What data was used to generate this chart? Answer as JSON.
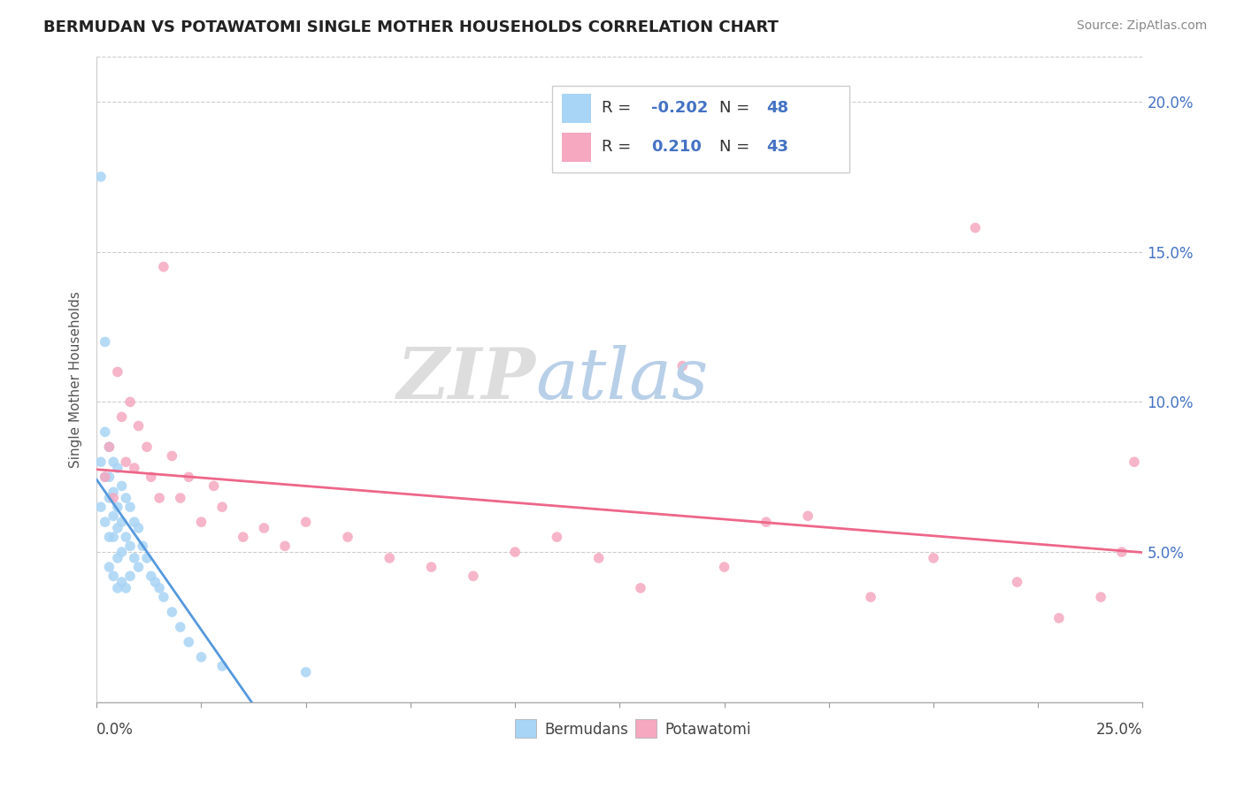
{
  "title": "BERMUDAN VS POTAWATOMI SINGLE MOTHER HOUSEHOLDS CORRELATION CHART",
  "source": "Source: ZipAtlas.com",
  "ylabel": "Single Mother Households",
  "yticklabels": [
    "5.0%",
    "10.0%",
    "15.0%",
    "20.0%"
  ],
  "ytick_values": [
    0.05,
    0.1,
    0.15,
    0.2
  ],
  "xlim": [
    0.0,
    0.25
  ],
  "ylim": [
    0.0,
    0.215
  ],
  "bermudan_color": "#a8d4f5",
  "potawatomi_color": "#f5a8c0",
  "bermudan_line_color": "#5599dd",
  "potawatomi_line_color": "#ee6688",
  "dashed_line_color": "#aaccee",
  "legend_R_bermudan": "-0.202",
  "legend_N_bermudan": "48",
  "legend_R_potawatomi": "0.210",
  "legend_N_potawatomi": "43",
  "background_color": "#ffffff",
  "bermudan_x": [
    0.001,
    0.001,
    0.001,
    0.002,
    0.002,
    0.002,
    0.002,
    0.003,
    0.003,
    0.003,
    0.003,
    0.003,
    0.004,
    0.004,
    0.004,
    0.004,
    0.004,
    0.005,
    0.005,
    0.005,
    0.005,
    0.005,
    0.006,
    0.006,
    0.006,
    0.006,
    0.007,
    0.007,
    0.007,
    0.008,
    0.008,
    0.008,
    0.009,
    0.009,
    0.01,
    0.01,
    0.011,
    0.012,
    0.013,
    0.014,
    0.015,
    0.016,
    0.018,
    0.02,
    0.022,
    0.025,
    0.03,
    0.05
  ],
  "bermudan_y": [
    0.175,
    0.08,
    0.065,
    0.12,
    0.09,
    0.075,
    0.06,
    0.085,
    0.075,
    0.068,
    0.055,
    0.045,
    0.08,
    0.07,
    0.062,
    0.055,
    0.042,
    0.078,
    0.065,
    0.058,
    0.048,
    0.038,
    0.072,
    0.06,
    0.05,
    0.04,
    0.068,
    0.055,
    0.038,
    0.065,
    0.052,
    0.042,
    0.06,
    0.048,
    0.058,
    0.045,
    0.052,
    0.048,
    0.042,
    0.04,
    0.038,
    0.035,
    0.03,
    0.025,
    0.02,
    0.015,
    0.012,
    0.01
  ],
  "potawatomi_x": [
    0.002,
    0.003,
    0.004,
    0.005,
    0.006,
    0.007,
    0.008,
    0.009,
    0.01,
    0.012,
    0.013,
    0.015,
    0.016,
    0.018,
    0.02,
    0.022,
    0.025,
    0.028,
    0.03,
    0.035,
    0.04,
    0.045,
    0.05,
    0.06,
    0.07,
    0.08,
    0.09,
    0.1,
    0.11,
    0.12,
    0.13,
    0.14,
    0.15,
    0.16,
    0.17,
    0.185,
    0.2,
    0.21,
    0.22,
    0.23,
    0.24,
    0.245,
    0.248
  ],
  "potawatomi_y": [
    0.075,
    0.085,
    0.068,
    0.11,
    0.095,
    0.08,
    0.1,
    0.078,
    0.092,
    0.085,
    0.075,
    0.068,
    0.145,
    0.082,
    0.068,
    0.075,
    0.06,
    0.072,
    0.065,
    0.055,
    0.058,
    0.052,
    0.06,
    0.055,
    0.048,
    0.045,
    0.042,
    0.05,
    0.055,
    0.048,
    0.038,
    0.112,
    0.045,
    0.06,
    0.062,
    0.035,
    0.048,
    0.158,
    0.04,
    0.028,
    0.035,
    0.05,
    0.08
  ]
}
